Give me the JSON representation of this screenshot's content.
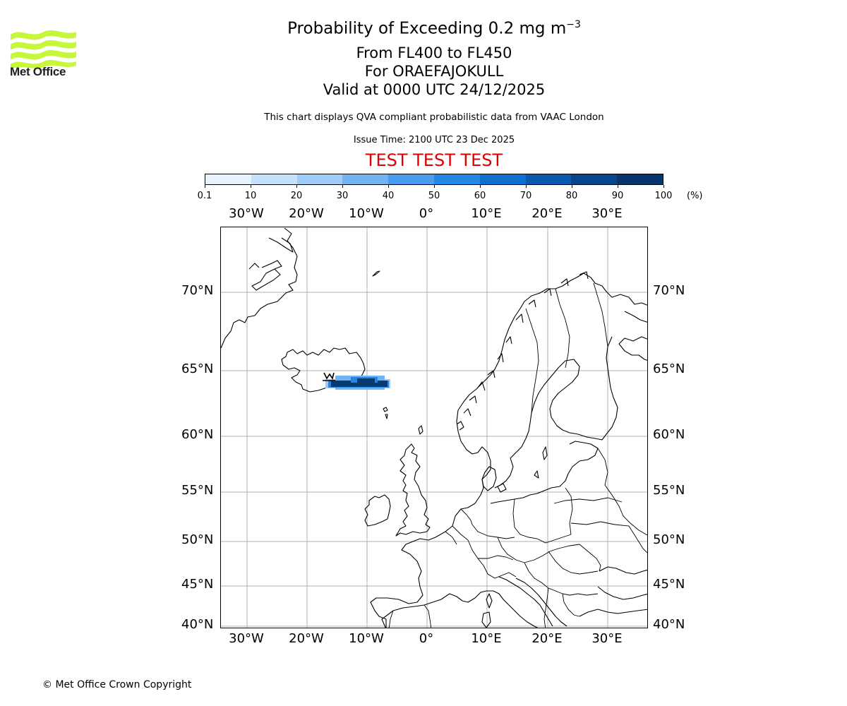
{
  "logo": {
    "text": "Met Office",
    "color": "#c6f73a"
  },
  "title": {
    "line1_main": "Probability of Exceeding 0.2 mg m",
    "line1_sup": "−3",
    "line2": "From FL400 to FL450",
    "line3": "For ORAEFAJOKULL",
    "line4": "Valid at 0000 UTC 24/12/2025"
  },
  "subtitle": "This chart displays QVA compliant probabilistic data from VAAC London",
  "issue_time": "Issue Time: 2100 UTC 23 Dec 2025",
  "test_banner": "TEST TEST TEST",
  "colorbar": {
    "labels": [
      "0.1",
      "10",
      "20",
      "30",
      "40",
      "50",
      "60",
      "70",
      "80",
      "90",
      "100"
    ],
    "unit": "(%)",
    "colors": [
      "#e6f2fd",
      "#c5e0fa",
      "#9fcbf6",
      "#74b3f2",
      "#4a9cee",
      "#2486e6",
      "#0f6fd0",
      "#0a59ad",
      "#07468a",
      "#053569"
    ]
  },
  "map": {
    "lon_labels": [
      "30°W",
      "20°W",
      "10°W",
      "0°",
      "10°E",
      "20°E",
      "30°E"
    ],
    "lat_labels": [
      "70°N",
      "65°N",
      "60°N",
      "55°N",
      "50°N",
      "45°N",
      "40°N"
    ],
    "volcano": "ORAEFAJOKULL",
    "plume_color": "#073a6e"
  },
  "copyright": "© Met Office Crown Copyright"
}
